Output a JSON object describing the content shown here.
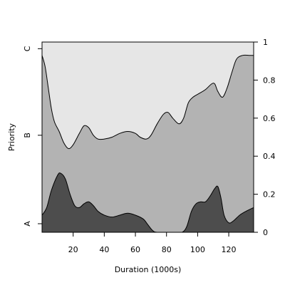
{
  "chart_data": {
    "type": "area",
    "subtype": "conditional-density",
    "title": "",
    "xlabel": "Duration (1000s)",
    "ylabel": "Priority",
    "xlim": [
      0,
      136
    ],
    "ylim": [
      0,
      1
    ],
    "x_ticks": [
      20,
      40,
      60,
      80,
      100,
      120
    ],
    "y_ticks_right": [
      0,
      0.2,
      0.4,
      0.6,
      0.8,
      1
    ],
    "y_ticks_right_labels": [
      "0",
      "0.2",
      "0.4",
      "0.6",
      "0.8",
      "1"
    ],
    "categories": [
      "A",
      "B",
      "C"
    ],
    "colors": {
      "A": "#4d4d4d",
      "B": "#b3b3b3",
      "C": "#e6e6e6"
    },
    "grid": false,
    "legend": "none",
    "boundary_A": [
      [
        0,
        0.09
      ],
      [
        3,
        0.13
      ],
      [
        6,
        0.22
      ],
      [
        10,
        0.3
      ],
      [
        12,
        0.31
      ],
      [
        15,
        0.28
      ],
      [
        18,
        0.2
      ],
      [
        21,
        0.14
      ],
      [
        24,
        0.13
      ],
      [
        27,
        0.15
      ],
      [
        30,
        0.16
      ],
      [
        33,
        0.14
      ],
      [
        36,
        0.11
      ],
      [
        40,
        0.09
      ],
      [
        45,
        0.08
      ],
      [
        50,
        0.09
      ],
      [
        55,
        0.1
      ],
      [
        60,
        0.09
      ],
      [
        65,
        0.07
      ],
      [
        68,
        0.04
      ],
      [
        71,
        0.01
      ],
      [
        74,
        0.0
      ],
      [
        85,
        0.0
      ],
      [
        90,
        0.0
      ],
      [
        93,
        0.03
      ],
      [
        96,
        0.11
      ],
      [
        99,
        0.15
      ],
      [
        102,
        0.16
      ],
      [
        105,
        0.16
      ],
      [
        108,
        0.19
      ],
      [
        111,
        0.23
      ],
      [
        113,
        0.24
      ],
      [
        115,
        0.18
      ],
      [
        117,
        0.09
      ],
      [
        120,
        0.05
      ],
      [
        123,
        0.06
      ],
      [
        127,
        0.09
      ],
      [
        131,
        0.11
      ],
      [
        136,
        0.13
      ]
    ],
    "boundary_B": [
      [
        0,
        0.93
      ],
      [
        2,
        0.87
      ],
      [
        4,
        0.76
      ],
      [
        6,
        0.65
      ],
      [
        8,
        0.58
      ],
      [
        11,
        0.53
      ],
      [
        14,
        0.47
      ],
      [
        17,
        0.44
      ],
      [
        20,
        0.46
      ],
      [
        24,
        0.52
      ],
      [
        27,
        0.56
      ],
      [
        30,
        0.55
      ],
      [
        33,
        0.51
      ],
      [
        36,
        0.49
      ],
      [
        40,
        0.49
      ],
      [
        45,
        0.5
      ],
      [
        50,
        0.52
      ],
      [
        55,
        0.53
      ],
      [
        60,
        0.52
      ],
      [
        63,
        0.5
      ],
      [
        67,
        0.49
      ],
      [
        70,
        0.51
      ],
      [
        74,
        0.57
      ],
      [
        78,
        0.62
      ],
      [
        81,
        0.63
      ],
      [
        84,
        0.6
      ],
      [
        88,
        0.57
      ],
      [
        91,
        0.6
      ],
      [
        94,
        0.68
      ],
      [
        97,
        0.71
      ],
      [
        101,
        0.73
      ],
      [
        105,
        0.75
      ],
      [
        109,
        0.78
      ],
      [
        111,
        0.78
      ],
      [
        113,
        0.74
      ],
      [
        116,
        0.71
      ],
      [
        119,
        0.76
      ],
      [
        122,
        0.84
      ],
      [
        125,
        0.91
      ],
      [
        129,
        0.93
      ],
      [
        133,
        0.93
      ],
      [
        136,
        0.93
      ]
    ]
  },
  "axis": {
    "ylabel": "Priority",
    "xlabel": "Duration (1000s)",
    "left_labels": [
      "A",
      "B",
      "C"
    ]
  }
}
